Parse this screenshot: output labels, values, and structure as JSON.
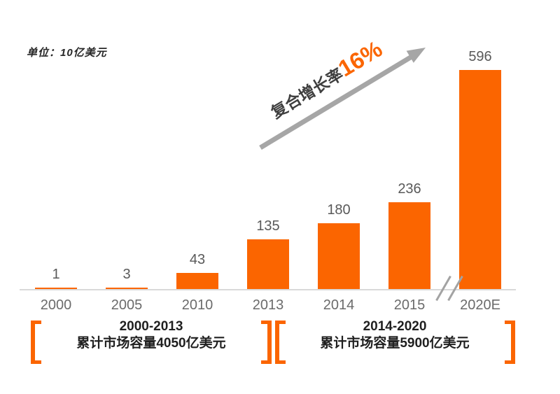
{
  "unit_label": "单位：10亿美元",
  "growth": {
    "prefix": "复合增长率",
    "value": "16%"
  },
  "chart_data": {
    "type": "bar",
    "categories": [
      "2000",
      "2005",
      "2010",
      "2013",
      "2014",
      "2015",
      "2020E"
    ],
    "values": [
      1,
      3,
      43,
      135,
      180,
      236,
      596
    ],
    "title": "",
    "xlabel": "",
    "ylabel": "",
    "unit": "10亿美元",
    "ylim": [
      0,
      650
    ],
    "grid": false,
    "legend": "none",
    "data_labels": true,
    "bar_color": "#fb6500",
    "axis_break_after": "2015",
    "cagr_annotation": "复合增长率16%"
  },
  "period_annotations": [
    {
      "line1": "2000-2013",
      "line2": "累计市场容量4050亿美元"
    },
    {
      "line1": "2014-2020",
      "line2": "累计市场容量5900亿美元"
    }
  ],
  "colors": {
    "bar_orange": "#fb6500",
    "arrow_gray": "#a6a6a6",
    "axis_gray": "#d9d9d9",
    "value_label_gray": "#595959",
    "year_label_gray": "#6b6b6b",
    "annotation_text": "#1f1f1f",
    "bracket_orange": "#fb6500",
    "background": "#ffffff"
  }
}
